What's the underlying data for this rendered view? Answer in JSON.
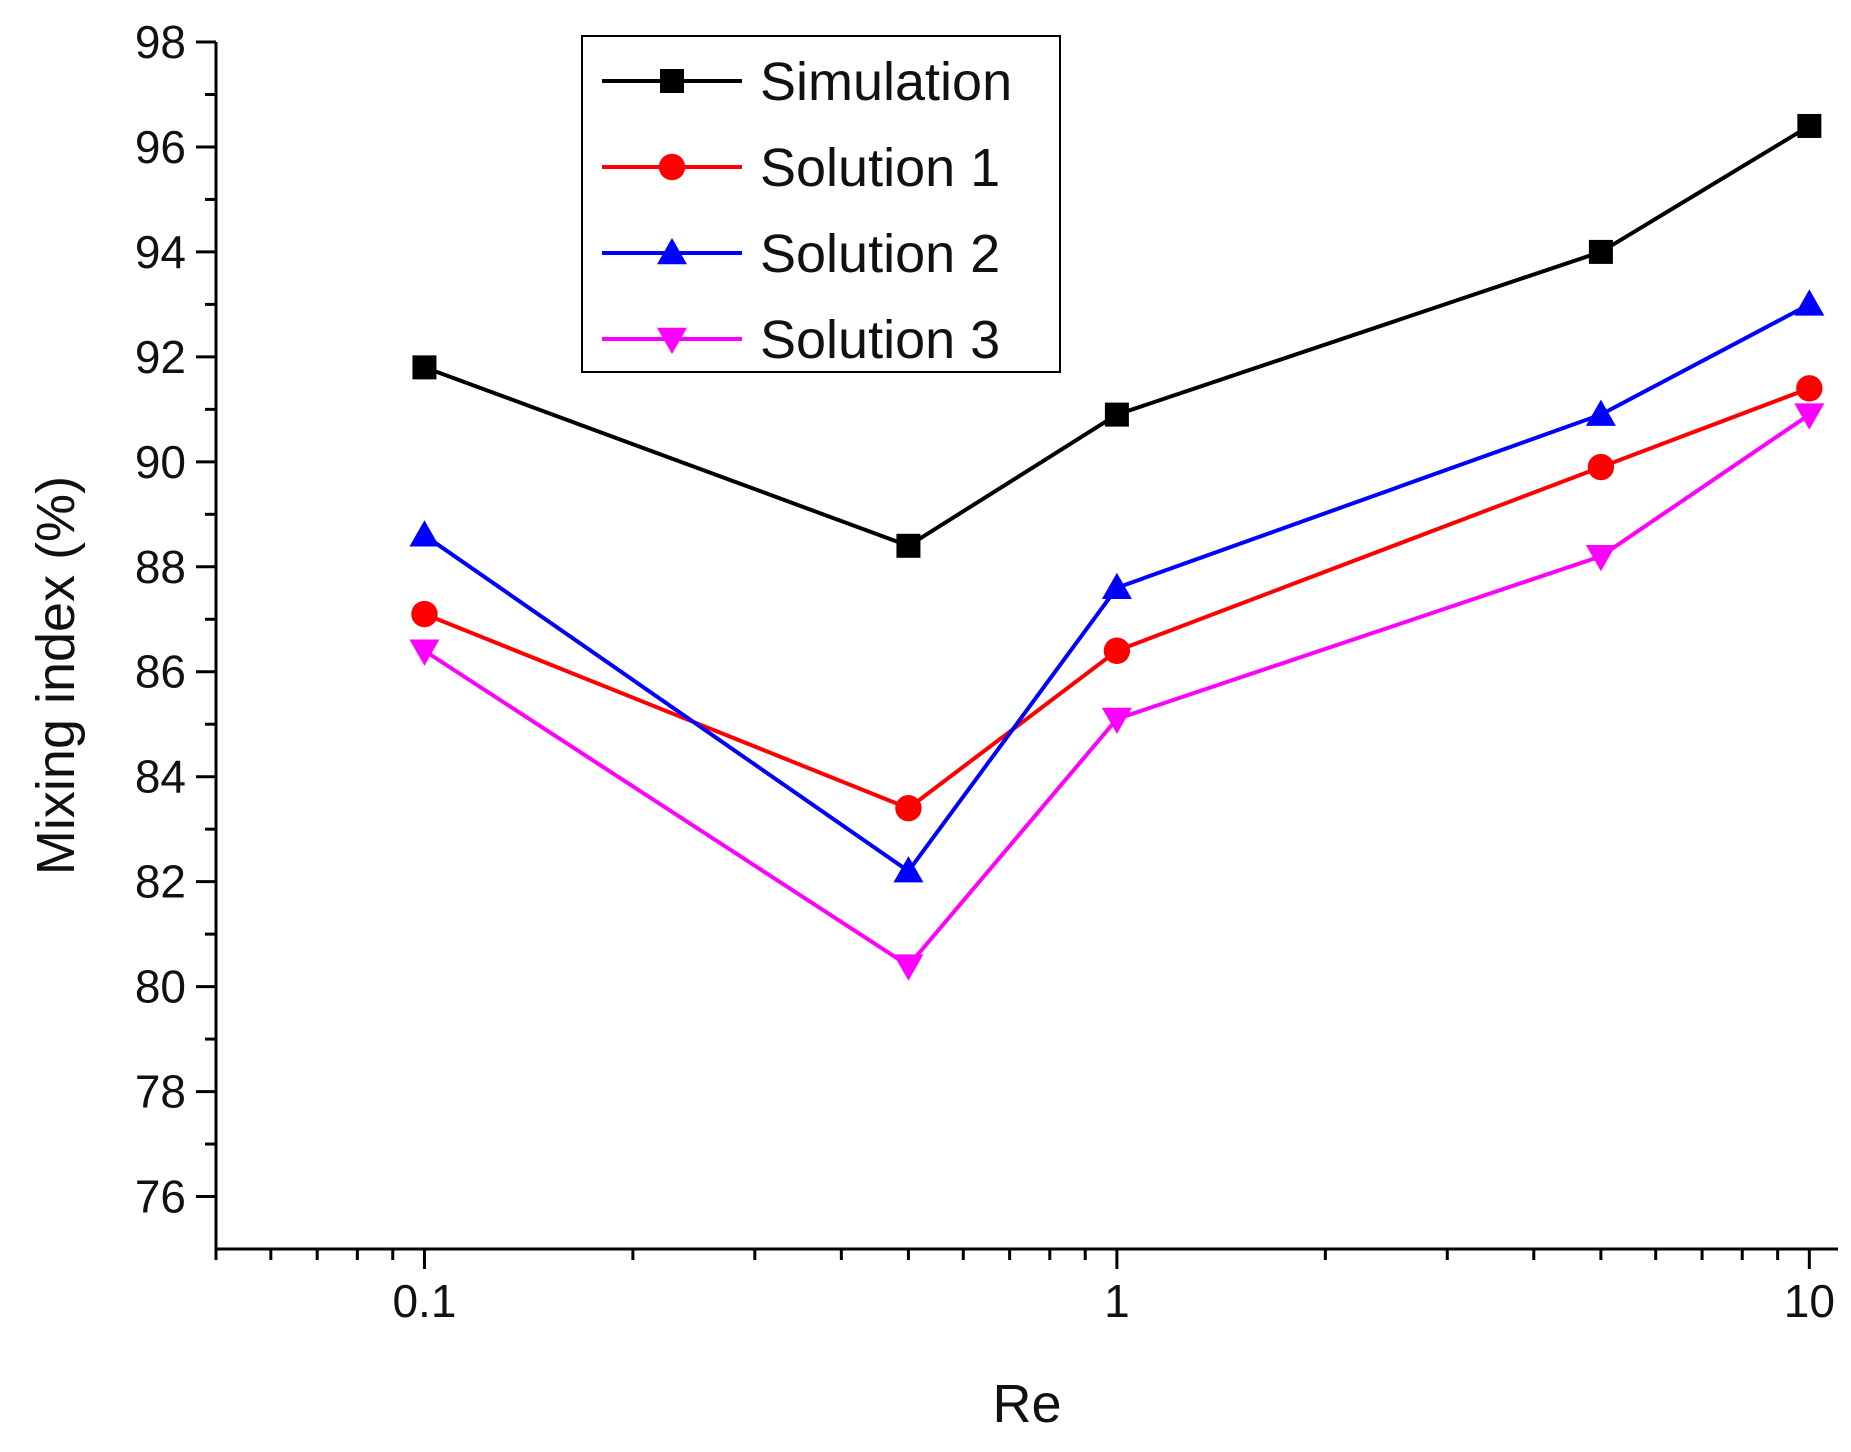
{
  "chart_data": {
    "type": "line",
    "xscale": "log",
    "x": [
      0.1,
      0.5,
      1,
      5,
      10
    ],
    "xlim": [
      0.05,
      11
    ],
    "ylim": [
      75,
      98
    ],
    "xticks": [
      0.1,
      1,
      10
    ],
    "xtick_labels": [
      "0.1",
      "1",
      "10"
    ],
    "yticks": [
      76,
      78,
      80,
      82,
      84,
      86,
      88,
      90,
      92,
      94,
      96,
      98
    ],
    "ytick_labels": [
      "76",
      "78",
      "80",
      "82",
      "84",
      "86",
      "88",
      "90",
      "92",
      "94",
      "96",
      "98"
    ],
    "xlabel": "Re",
    "ylabel": "Mixing index (%)",
    "legend_position": "top-center",
    "series": [
      {
        "name": "Simulation",
        "color": "#000000",
        "marker": "square",
        "values": [
          91.8,
          88.4,
          90.9,
          94.0,
          96.4
        ]
      },
      {
        "name": "Solution 1",
        "color": "#ff0000",
        "marker": "circle",
        "values": [
          87.1,
          83.4,
          86.4,
          89.9,
          91.4
        ]
      },
      {
        "name": "Solution 2",
        "color": "#0000ff",
        "marker": "triangle-up",
        "values": [
          88.6,
          82.2,
          87.6,
          90.9,
          93.0
        ]
      },
      {
        "name": "Solution 3",
        "color": "#ff00ff",
        "marker": "triangle-down",
        "values": [
          86.4,
          80.4,
          85.1,
          88.2,
          90.9
        ]
      }
    ]
  }
}
